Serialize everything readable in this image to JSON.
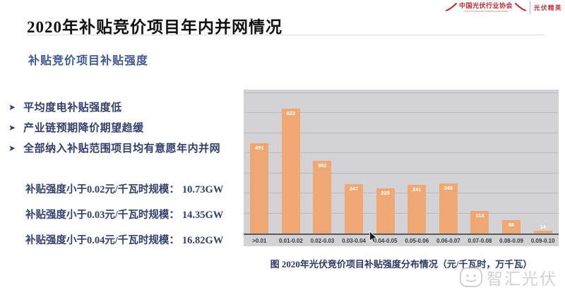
{
  "header": {
    "cpia_logo": {
      "cn": "中国光伏行业协会",
      "en": "China Photovoltaic Industry Association"
    },
    "right_brand": "光伏精英",
    "brand_color": "#C3272E"
  },
  "title": "2020年补贴竞价项目年内并网情况",
  "subtitle": "补贴竞价项目补贴强度",
  "bullet_icon": "➤",
  "bullets": [
    "平均度电补贴强度低",
    "产业链预期降价期望趋缓",
    "全部纳入补贴范围项目均有意愿年内并网"
  ],
  "stats": [
    {
      "label": "补贴强度小于0.02元/千瓦时规模：",
      "value": "10.73GW"
    },
    {
      "label": "补贴强度小于0.03元/千瓦时规模：",
      "value": "14.35GW"
    },
    {
      "label": "补贴强度小于0.04元/千瓦时规模：",
      "value": "16.82GW"
    }
  ],
  "chart_data": {
    "type": "bar",
    "title": "图 2020年光伏竞价项目补贴强度分布情况（元/千瓦时，万千瓦）",
    "categories": [
      ">0.01",
      "0.01-0.02",
      "0.02-0.03",
      "0.03-0.04",
      "0.04-0.05",
      "0.05-0.06",
      "0.06-0.07",
      "0.07-0.08",
      "0.08-0.09",
      "0.09-0.10"
    ],
    "values": [
      451,
      622,
      362,
      247,
      225,
      241,
      249,
      114,
      66,
      14
    ],
    "xlabel": "",
    "ylabel": "",
    "x_unit": "元/千瓦时",
    "y_unit": "万千瓦",
    "ylim": [
      0,
      700
    ],
    "grid_step": 100,
    "gridlines": true,
    "legend": false,
    "value_labels": true,
    "colors": {
      "bar": "#EFA873",
      "plot_bg": "#D3D3D5",
      "gridline": "#BCBCBE",
      "axis": "#5A5A5D",
      "value_label": "#FFFFFF"
    }
  },
  "watermark": {
    "text": "智汇光伏"
  },
  "text_colors": {
    "title": "#111111",
    "subtitle": "#3C5792",
    "body_navy": "#333F6B"
  }
}
